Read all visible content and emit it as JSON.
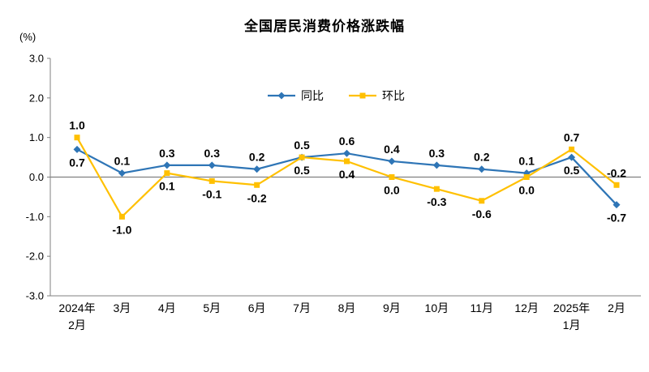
{
  "chart_data": {
    "type": "line",
    "title": "全国居民消费价格涨跌幅",
    "ylabel": "(%)",
    "categories": [
      "2024年\n2月",
      "3月",
      "4月",
      "5月",
      "6月",
      "7月",
      "8月",
      "9月",
      "10月",
      "11月",
      "12月",
      "2025年\n1月",
      "2月"
    ],
    "series": [
      {
        "name": "同比",
        "marker": "diamond",
        "color": "#2E75B6",
        "values": [
          0.7,
          0.1,
          0.3,
          0.3,
          0.2,
          0.5,
          0.6,
          0.4,
          0.3,
          0.2,
          0.1,
          0.5,
          -0.7
        ]
      },
      {
        "name": "环比",
        "marker": "square",
        "color": "#FFC000",
        "values": [
          1.0,
          -1.0,
          0.1,
          -0.1,
          -0.2,
          0.5,
          0.4,
          0.0,
          -0.3,
          -0.6,
          0.0,
          0.7,
          -0.2
        ]
      }
    ],
    "ylim": [
      -3.0,
      3.0
    ],
    "ytick_step": 1.0,
    "yticks": [
      3.0,
      2.0,
      1.0,
      0.0,
      -1.0,
      -2.0,
      -3.0
    ],
    "legend_position": "top-center-inside",
    "grid": false,
    "value_format": "one-decimal",
    "axis_color": "#808080",
    "zero_line_color": "#808080"
  }
}
